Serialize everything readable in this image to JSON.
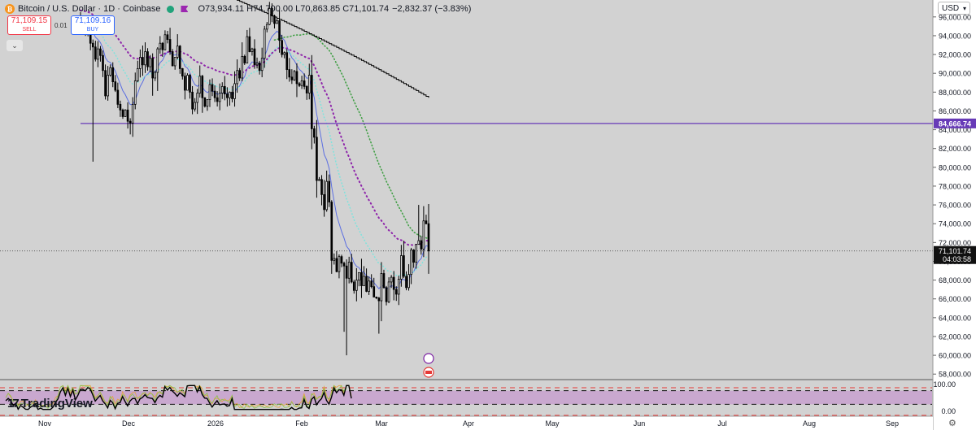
{
  "header": {
    "title": "Bitcoin / U.S. Dollar · 1D · Coinbase",
    "ohlc": "O73,934.11 H74,700.00 L70,863.85 C71,101.74",
    "change": "−2,832.37 (−3.83%)"
  },
  "trade": {
    "sell_price": "71,109.15",
    "sell_label": "SELL",
    "spread": "0.01",
    "buy_price": "71,109.16",
    "buy_label": "BUY"
  },
  "currency": {
    "label": "USD"
  },
  "collapse_icon": "chevron-down-icon",
  "brand": {
    "name": "TradingView",
    "icon": "tradingview-logo-icon"
  },
  "colors": {
    "background": "#d2d2d2",
    "candle": "#000000",
    "ema_blue": "#5b6ee1",
    "ema_cyan": "#7fe3dd",
    "dots_purple": "#8e24aa",
    "dots_green": "#43a047",
    "long_ma": "#000000",
    "hline": "#673ab7",
    "oscillator_band": "#c9a8cf",
    "oscillator_line": "#000000",
    "bottom_dash": "#e53935"
  },
  "chart_data": [
    {
      "type": "candlestick",
      "title": "Bitcoin / U.S. Dollar · 1D · Coinbase",
      "x_ticks": [
        "Nov",
        "Dec",
        "2026",
        "Feb",
        "Mar",
        "Apr",
        "May",
        "Jun",
        "Jul",
        "Aug",
        "Sep"
      ],
      "y_ticks": [
        "58,000.00",
        "60,000.00",
        "62,000.00",
        "64,000.00",
        "66,000.00",
        "68,000.00",
        "70,000.00",
        "72,000.00",
        "74,000.00",
        "76,000.00",
        "78,000.00",
        "80,000.00",
        "82,000.00",
        "84,000.00",
        "86,000.00",
        "88,000.00",
        "90,000.00",
        "92,000.00",
        "94,000.00",
        "96,000.00"
      ],
      "ylim": [
        57500,
        97800
      ],
      "current_price": 71101.74,
      "current_price_label": "71,101.74",
      "countdown": "04:03:58",
      "horizontal_line": 84666.74,
      "horizontal_line_label": "84,666.74",
      "close_series": [
        95800,
        95200,
        94400,
        94600,
        93200,
        92800,
        91500,
        92600,
        91900,
        90300,
        87600,
        89800,
        90600,
        89100,
        88200,
        86700,
        86100,
        85400,
        86100,
        84900,
        84700,
        86700,
        89200,
        90500,
        91700,
        90900,
        92300,
        90700,
        91600,
        89500,
        90100,
        92600,
        93200,
        92500,
        94100,
        93600,
        92300,
        90800,
        91700,
        92900,
        90500,
        89700,
        88200,
        89800,
        88000,
        86200,
        86900,
        87900,
        89700,
        87400,
        86500,
        87200,
        88800,
        88100,
        87400,
        87000,
        87900,
        88600,
        87800,
        87400,
        88000,
        87300,
        88900,
        90300,
        89500,
        91800,
        91100,
        93900,
        92300,
        92600,
        90900,
        91100,
        90300,
        91600,
        94700,
        95200,
        96900,
        96100,
        95300,
        95600,
        93500,
        92000,
        92200,
        90400,
        89600,
        89300,
        90200,
        88900,
        88700,
        89200,
        88600,
        87900,
        89800,
        84100,
        83200,
        78600,
        78700,
        77100,
        75500,
        78500,
        76300,
        70100,
        70300,
        68900,
        70500,
        69800,
        69500,
        68200,
        69900,
        67800,
        66900,
        68000,
        68800,
        67400,
        68400,
        66800,
        67900,
        67300,
        66200,
        66100,
        65800,
        68700,
        67200,
        65700,
        67800,
        68300,
        67000,
        66500,
        68100,
        70600,
        68400,
        67200,
        68600,
        71200,
        69900,
        71800,
        72200,
        71300,
        74300,
        74000,
        71100
      ],
      "series": [
        {
          "name": "EMA blue",
          "values": []
        },
        {
          "name": "EMA cyan",
          "values": []
        },
        {
          "name": "Dotted purple",
          "values": []
        },
        {
          "name": "Dotted green",
          "values": []
        },
        {
          "name": "Long MA",
          "values": []
        }
      ]
    },
    {
      "type": "line",
      "title": "oscillator",
      "y_ticks": [
        "100.00",
        "0.00"
      ],
      "ylim": [
        0,
        100
      ],
      "band": [
        30,
        70
      ]
    }
  ]
}
